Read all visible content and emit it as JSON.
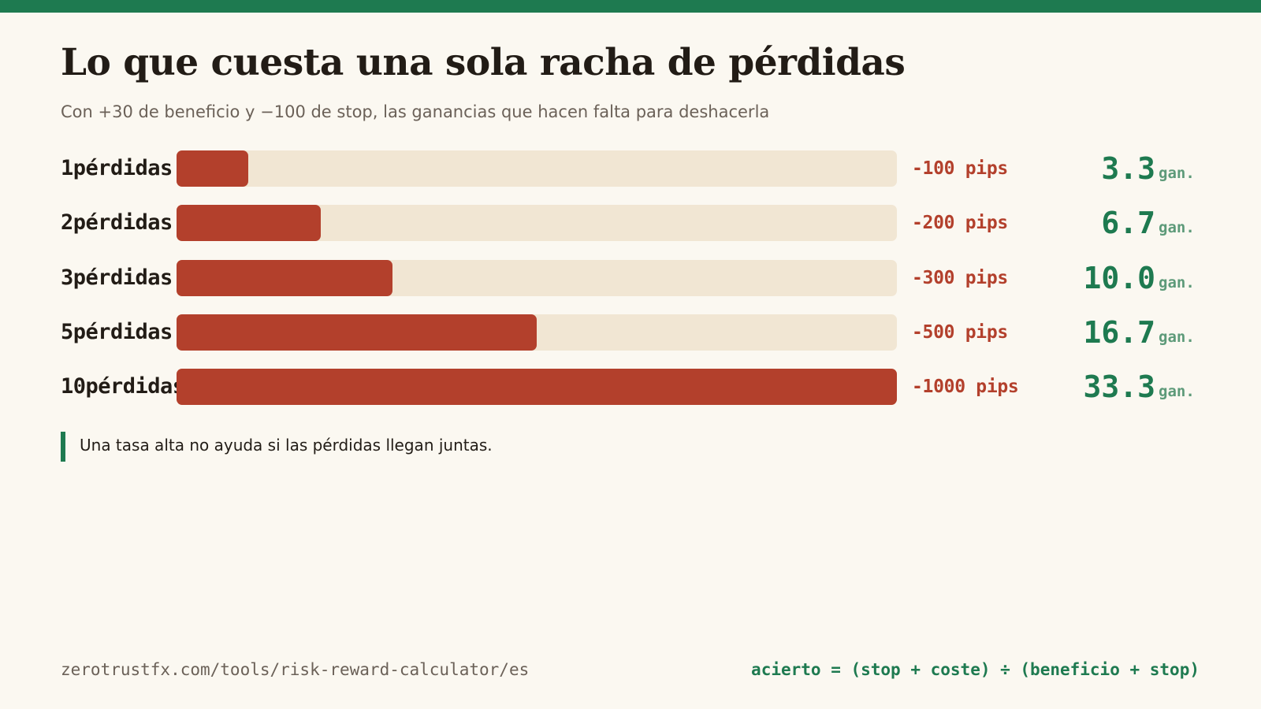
{
  "header": {
    "title": "Lo que cuesta una sola racha de pérdidas",
    "subtitle": "Con +30 de beneficio y −100 de stop, las ganancias que hacen falta para deshacerla"
  },
  "colors": {
    "accent": "#1e7a50",
    "loss": "#b3402c",
    "track": "#f1e6d3",
    "background": "#fbf8f1"
  },
  "chart_data": {
    "type": "bar",
    "orientation": "horizontal",
    "categories": [
      "1pérdidas",
      "2pérdidas",
      "3pérdidas",
      "5pérdidas",
      "10pérdidas"
    ],
    "series": [
      {
        "values": [
          -100,
          -200,
          -300,
          -500,
          -1000
        ]
      }
    ],
    "value_labels": [
      "-100 pips",
      "-200 pips",
      "-300 pips",
      "-500 pips",
      "-1000 pips"
    ],
    "wins_needed": [
      "3.3",
      "6.7",
      "10.0",
      "16.7",
      "33.3"
    ],
    "wins_unit": "gan.",
    "xlim": [
      0,
      1000
    ],
    "title": "Lo que cuesta una sola racha de pérdidas",
    "xlabel": "",
    "ylabel": ""
  },
  "note": "Una tasa alta no ayuda si las pérdidas llegan juntas.",
  "footer": {
    "url": "zerotrustfx.com/tools/risk-reward-calculator/es",
    "formula": "acierto = (stop + coste) ÷ (beneficio + stop)"
  }
}
